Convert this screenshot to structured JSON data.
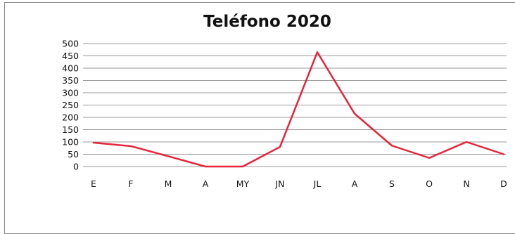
{
  "chart_data": {
    "type": "line",
    "title": "Teléfono 2020",
    "xlabel": "",
    "ylabel": "",
    "categories": [
      "E",
      "F",
      "M",
      "A",
      "MY",
      "JN",
      "JL",
      "A",
      "S",
      "O",
      "N",
      "D"
    ],
    "series": [
      {
        "values": [
          97,
          83,
          42,
          0,
          0,
          80,
          465,
          215,
          85,
          35,
          100,
          50
        ]
      }
    ],
    "ylim": [
      0,
      500
    ],
    "yticks": [
      0,
      50,
      100,
      150,
      200,
      250,
      300,
      350,
      400,
      450,
      500
    ],
    "grid": true,
    "legend": "none",
    "line_color": "#e8243a",
    "grid_color": "#9a9a9a"
  }
}
